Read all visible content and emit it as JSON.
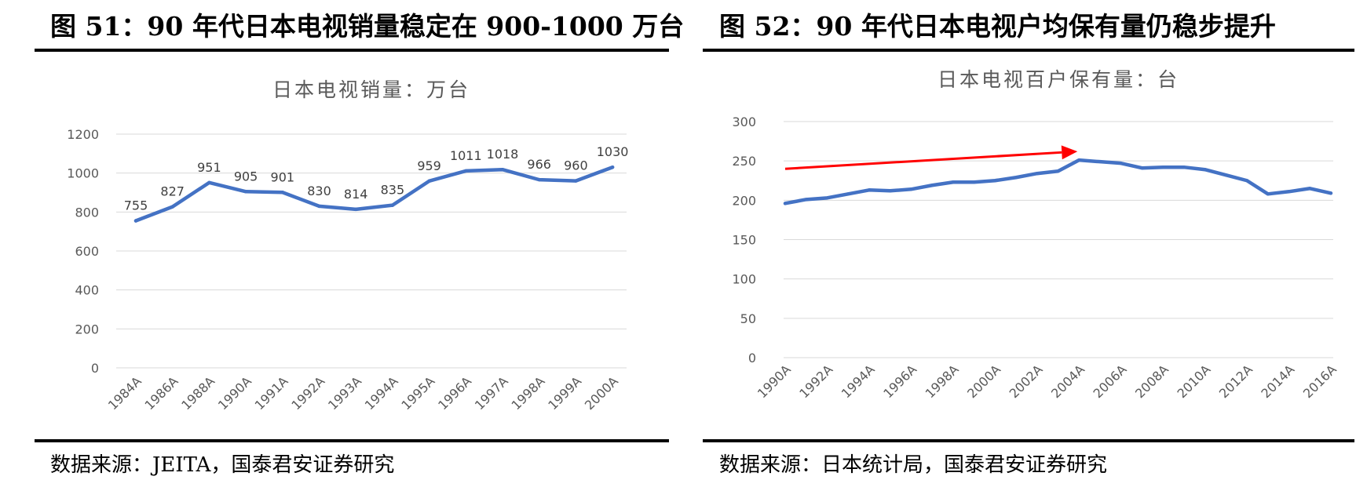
{
  "figures": [
    {
      "title": "图 51：90 年代日本电视销量稳定在 900-1000 万台",
      "source": "数据来源：JEITA，国泰君安证券研究"
    },
    {
      "title": "图 52：90 年代日本电视户均保有量仍稳步提升",
      "source": "数据来源：日本统计局，国泰君安证券研究"
    }
  ],
  "chart_data": [
    {
      "type": "line",
      "title": "日本电视销量：万台",
      "categories": [
        "1984A",
        "1986A",
        "1988A",
        "1990A",
        "1991A",
        "1992A",
        "1993A",
        "1994A",
        "1995A",
        "1996A",
        "1997A",
        "1998A",
        "1999A",
        "2000A"
      ],
      "values": [
        755,
        827,
        951,
        905,
        901,
        830,
        814,
        835,
        959,
        1011,
        1018,
        966,
        960,
        1030
      ],
      "data_labels": [
        "755",
        "827",
        "951",
        "905",
        "901",
        "830",
        "814",
        "835",
        "959",
        "1011",
        "1018",
        "966",
        "960",
        "1030"
      ],
      "y_ticks": [
        "0",
        "200",
        "400",
        "600",
        "800",
        "1000",
        "1200"
      ],
      "ylim": [
        0,
        1200
      ],
      "xlabel": "",
      "ylabel": "",
      "grid": true,
      "color": "#4472c4"
    },
    {
      "type": "line",
      "title": "日本电视百户保有量：台",
      "x_tick_labels": [
        "1990A",
        "1992A",
        "1994A",
        "1996A",
        "1998A",
        "2000A",
        "2002A",
        "2004A",
        "2006A",
        "2008A",
        "2010A",
        "2012A",
        "2014A",
        "2016A"
      ],
      "x": [
        1990,
        1991,
        1992,
        1993,
        1994,
        1995,
        1996,
        1997,
        1998,
        1999,
        2000,
        2001,
        2002,
        2003,
        2004,
        2005,
        2006,
        2007,
        2008,
        2009,
        2010,
        2011,
        2012,
        2013,
        2014,
        2015,
        2016
      ],
      "values": [
        196,
        201,
        203,
        208,
        213,
        212,
        214,
        219,
        223,
        223,
        225,
        229,
        234,
        237,
        251,
        249,
        247,
        241,
        242,
        242,
        239,
        232,
        225,
        208,
        211,
        215,
        209
      ],
      "y_ticks": [
        "0",
        "50",
        "100",
        "150",
        "200",
        "250",
        "300"
      ],
      "ylim": [
        0,
        300
      ],
      "xlabel": "",
      "ylabel": "",
      "grid": true,
      "color": "#4472c4",
      "annotation": {
        "type": "trend-arrow",
        "color": "#ff0000",
        "from": [
          1990,
          240
        ],
        "to": [
          2004,
          262
        ]
      }
    }
  ]
}
